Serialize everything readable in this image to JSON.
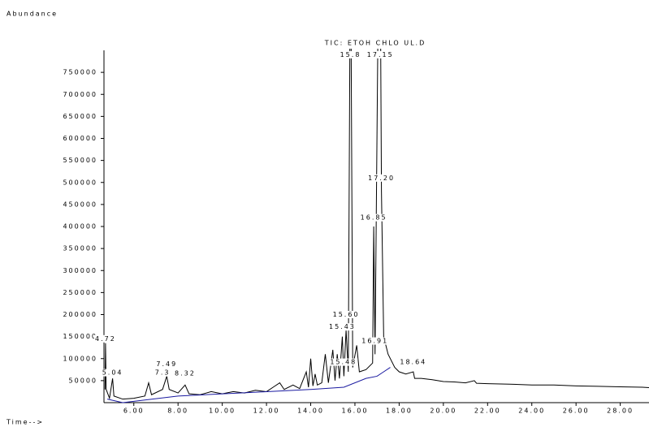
{
  "chart_data": {
    "type": "line",
    "title": "TIC: ETOH CHLO UL.D",
    "y_label": "Abundance",
    "x_label": "Time-->",
    "x": [
      4.7,
      4.72,
      4.75,
      4.9,
      5.04,
      5.1,
      5.5,
      6.0,
      6.5,
      6.67,
      6.8,
      7.3,
      7.49,
      7.6,
      8.0,
      8.32,
      8.5,
      9.0,
      9.5,
      10.0,
      10.5,
      11.0,
      11.5,
      12.0,
      12.3,
      12.6,
      12.8,
      13.2,
      13.5,
      13.8,
      13.9,
      14.0,
      14.1,
      14.2,
      14.3,
      14.5,
      14.66,
      14.8,
      15.0,
      15.1,
      15.2,
      15.3,
      15.43,
      15.5,
      15.6,
      15.7,
      15.78,
      15.82,
      15.9,
      16.08,
      16.2,
      16.5,
      16.8,
      16.85,
      16.91,
      17.05,
      17.15,
      17.2,
      17.3,
      17.5,
      17.8,
      18.0,
      18.3,
      18.64,
      18.7,
      19.0,
      19.5,
      20.0,
      20.5,
      21.0,
      21.4,
      21.5,
      22.0,
      23.0,
      24.0,
      25.0,
      26.0,
      27.0,
      28.0,
      29.0,
      29.3
    ],
    "series": [
      {
        "color": "#000000",
        "values": [
          30000,
          135000,
          30000,
          10000,
          55000,
          15000,
          8000,
          10000,
          15000,
          45000,
          18000,
          30000,
          60000,
          30000,
          22000,
          40000,
          20000,
          18000,
          25000,
          20000,
          25000,
          22000,
          28000,
          25000,
          35000,
          45000,
          30000,
          40000,
          32000,
          70000,
          35000,
          100000,
          38000,
          65000,
          40000,
          45000,
          110000,
          45000,
          120000,
          50000,
          110000,
          55000,
          150000,
          60000,
          165000,
          70000,
          900000,
          900000,
          80000,
          130000,
          70000,
          75000,
          90000,
          400000,
          110000,
          900000,
          950000,
          480000,
          150000,
          110000,
          80000,
          70000,
          65000,
          70000,
          55000,
          55000,
          52000,
          48000,
          47000,
          45000,
          50000,
          44000,
          43000,
          42000,
          40000,
          40000,
          38000,
          37000,
          36000,
          35000,
          34000
        ]
      }
    ],
    "baseline": {
      "color": "#1a1aa0",
      "x": [
        4.8,
        5.5,
        8.0,
        12.0,
        14.0,
        15.5,
        16.5,
        17.0,
        17.3,
        17.6
      ],
      "values": [
        8000,
        0,
        15000,
        25000,
        30000,
        35000,
        55000,
        60000,
        70000,
        80000
      ]
    },
    "peaks": [
      {
        "label": "4.72",
        "x": 4.72,
        "y": 145000
      },
      {
        "label": "5.04",
        "x": 5.04,
        "y": 68000
      },
      {
        "label": "7.3",
        "x": 7.3,
        "y": 68000
      },
      {
        "label": "7.49",
        "x": 7.49,
        "y": 88000
      },
      {
        "label": "8.32",
        "x": 8.32,
        "y": 66000
      },
      {
        "label": "15.8",
        "x": 15.8,
        "y": 790000
      },
      {
        "label": "17.15",
        "x": 17.15,
        "y": 790000
      },
      {
        "label": "17.20",
        "x": 17.2,
        "y": 510000
      },
      {
        "label": "16.85",
        "x": 16.85,
        "y": 420000
      },
      {
        "label": "15.60",
        "x": 15.6,
        "y": 200000
      },
      {
        "label": "15.43",
        "x": 15.43,
        "y": 172000
      },
      {
        "label": "16.91",
        "x": 16.91,
        "y": 140000
      },
      {
        "label": "15.48",
        "x": 15.48,
        "y": 92000
      },
      {
        "label": "18.64",
        "x": 18.64,
        "y": 92000
      }
    ],
    "xlim": [
      4.65,
      29.3
    ],
    "ylim": [
      0,
      800000
    ],
    "xticks": [
      {
        "value": 6,
        "label": "6.00"
      },
      {
        "value": 8,
        "label": "8.00"
      },
      {
        "value": 10,
        "label": "10.00"
      },
      {
        "value": 12,
        "label": "12.00"
      },
      {
        "value": 14,
        "label": "14.00"
      },
      {
        "value": 16,
        "label": "16.00"
      },
      {
        "value": 18,
        "label": "18.00"
      },
      {
        "value": 20,
        "label": "20.00"
      },
      {
        "value": 22,
        "label": "22.00"
      },
      {
        "value": 24,
        "label": "24.00"
      },
      {
        "value": 26,
        "label": "26.00"
      },
      {
        "value": 28,
        "label": "28.00"
      }
    ],
    "yticks": [
      50000,
      100000,
      150000,
      200000,
      250000,
      300000,
      350000,
      400000,
      450000,
      500000,
      550000,
      600000,
      650000,
      700000,
      750000
    ]
  }
}
